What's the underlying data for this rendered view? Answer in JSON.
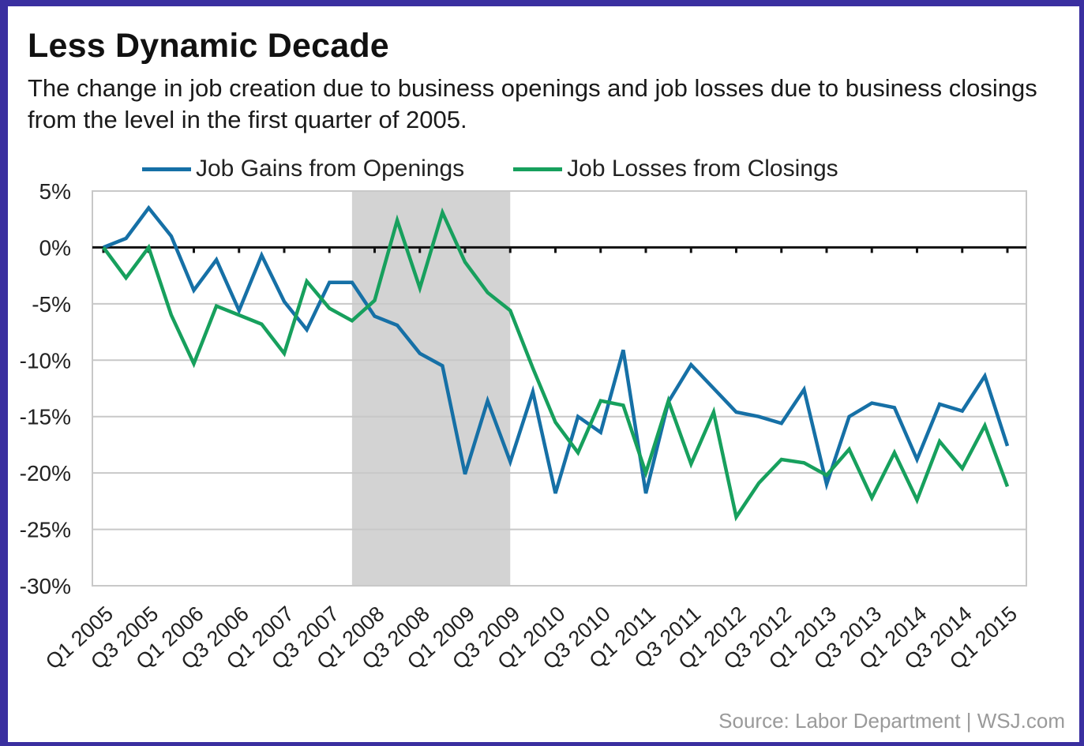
{
  "chart_data": {
    "type": "line",
    "title": "Less Dynamic Decade",
    "subtitle": "The change in job creation due to business openings and job losses due to business closings from the level in the first quarter of 2005.",
    "source": "Source: Labor Department  |  WSJ.com",
    "ylim": [
      -30,
      5
    ],
    "yticks": [
      5,
      0,
      -5,
      -10,
      -15,
      -20,
      -25,
      -30
    ],
    "ytick_labels": [
      "5%",
      "0%",
      "-5%",
      "-10%",
      "-15%",
      "-20%",
      "-25%",
      "-30%"
    ],
    "x_tick_labels": [
      "Q1 2005",
      "Q3 2005",
      "Q1 2006",
      "Q3 2006",
      "Q1 2007",
      "Q3 2007",
      "Q1 2008",
      "Q3 2008",
      "Q1 2009",
      "Q3 2009",
      "Q1 2010",
      "Q3 2010",
      "Q1 2011",
      "Q3 2011",
      "Q1 2012",
      "Q3 2012",
      "Q1 2013",
      "Q3 2013",
      "Q1 2014",
      "Q3 2014",
      "Q1 2015"
    ],
    "n_quarters": 41,
    "shaded_region": {
      "from_quarter": 11,
      "to_quarter": 18
    },
    "legend_position": "top",
    "grid": true,
    "series": [
      {
        "name": "Job Gains from Openings",
        "color": "#1670a6",
        "values": [
          0,
          0.8,
          3.5,
          1.0,
          -3.8,
          -1.1,
          -5.6,
          -0.7,
          -4.8,
          -7.3,
          -3.1,
          -3.1,
          -6.1,
          -6.9,
          -9.4,
          -10.5,
          -20.1,
          -13.6,
          -19.0,
          -12.8,
          -21.8,
          -15.0,
          -16.4,
          -9.1,
          -21.8,
          -13.7,
          -10.4,
          -12.5,
          -14.6,
          -15.0,
          -15.6,
          -12.6,
          -21.0,
          -15.0,
          -13.8,
          -14.2,
          -18.8,
          -13.9,
          -14.5,
          -11.4,
          -17.6
        ]
      },
      {
        "name": "Job Losses from Closings",
        "color": "#17a05d",
        "values": [
          0,
          -2.7,
          0,
          -6.0,
          -10.3,
          -5.2,
          -6.0,
          -6.8,
          -9.4,
          -3.0,
          -5.4,
          -6.5,
          -4.7,
          2.4,
          -3.6,
          3.1,
          -1.3,
          -4.0,
          -5.6,
          -10.7,
          -15.5,
          -18.2,
          -13.6,
          -14.0,
          -20.0,
          -13.6,
          -19.2,
          -14.6,
          -23.9,
          -20.9,
          -18.8,
          -19.1,
          -20.2,
          -17.9,
          -22.2,
          -18.2,
          -22.4,
          -17.2,
          -19.6,
          -15.8,
          -21.2
        ]
      }
    ]
  }
}
